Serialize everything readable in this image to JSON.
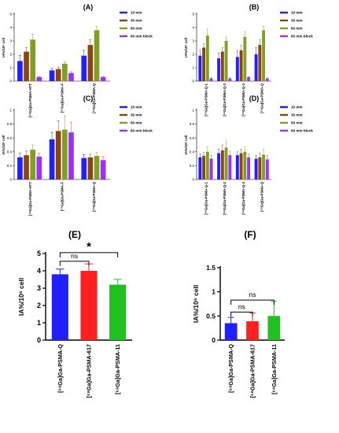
{
  "chart_data": [
    {
      "panel": "(A)",
      "type": "bar",
      "ylabel": "IA%/10⁶ cell",
      "ylim": [
        0,
        5
      ],
      "yticks": [
        0,
        1,
        2,
        3,
        4,
        5
      ],
      "categories": [
        "[⁶⁸Ga]Ga-PSMA-HTT",
        "[⁶⁸Ga]Ga-PSMA-F",
        "[⁶⁸Ga]Ga-PSMA-Q"
      ],
      "legend_position": "right",
      "series": [
        {
          "name": "10 min",
          "color": "#2020ff",
          "values": [
            1.5,
            0.8,
            1.9
          ],
          "errors": [
            0.4,
            0.15,
            0.4
          ]
        },
        {
          "name": "30 min",
          "color": "#8b4513",
          "values": [
            2.2,
            0.9,
            2.7
          ],
          "errors": [
            0.3,
            0.15,
            0.4
          ]
        },
        {
          "name": "60 min",
          "color": "#7fa020",
          "values": [
            3.1,
            1.3,
            3.8
          ],
          "errors": [
            0.4,
            0.15,
            0.3
          ]
        },
        {
          "name": "60 min block",
          "color": "#9b30ff",
          "values": [
            0.3,
            0.6,
            0.3
          ],
          "errors": [
            0.05,
            0.1,
            0.05
          ]
        }
      ]
    },
    {
      "panel": "(B)",
      "type": "bar",
      "ylabel": "IA%/10⁶ cell",
      "ylim": [
        0,
        5
      ],
      "yticks": [
        0,
        1,
        2,
        3,
        4,
        5
      ],
      "categories": [
        "[⁶⁸Ga]Ga-PSMA-Q-1",
        "[⁶⁸Ga]Ga-PSMA-Q-2",
        "[⁶⁸Ga]Ga-PSMA-Q-3",
        "[⁶⁸Ga]Ga-PSMA-Q"
      ],
      "legend_position": "right",
      "series": [
        {
          "name": "10 min",
          "color": "#2020ff",
          "values": [
            1.9,
            1.7,
            1.8,
            2.0
          ],
          "errors": [
            0.4,
            0.4,
            0.5,
            0.5
          ]
        },
        {
          "name": "30 min",
          "color": "#8b4513",
          "values": [
            2.5,
            2.2,
            2.3,
            2.7
          ],
          "errors": [
            0.3,
            0.3,
            0.4,
            0.4
          ]
        },
        {
          "name": "60 min",
          "color": "#7fa020",
          "values": [
            3.4,
            3.0,
            3.3,
            3.8
          ],
          "errors": [
            0.5,
            0.3,
            0.4,
            0.3
          ]
        },
        {
          "name": "60 min block",
          "color": "#9b30ff",
          "values": [
            0.2,
            0.2,
            0.3,
            0.2
          ],
          "errors": [
            0.05,
            0.05,
            0.05,
            0.05
          ]
        }
      ]
    },
    {
      "panel": "(C)",
      "type": "bar",
      "ylabel": "IA%/10⁶ cell",
      "ylim": [
        0,
        1.0
      ],
      "yticks": [
        0,
        0.2,
        0.4,
        0.6,
        0.8,
        1.0
      ],
      "categories": [
        "[⁶⁸Ga]Ga-PSMA-HTT",
        "[⁶⁸Ga]Ga-PSMA-F",
        "[⁶⁸Ga]Ga-PSMA-Q"
      ],
      "legend_position": "right",
      "series": [
        {
          "name": "10 min",
          "color": "#2020ff",
          "values": [
            0.32,
            0.58,
            0.31
          ],
          "errors": [
            0.06,
            0.1,
            0.05
          ]
        },
        {
          "name": "30 min",
          "color": "#8b4513",
          "values": [
            0.35,
            0.7,
            0.32
          ],
          "errors": [
            0.06,
            0.15,
            0.05
          ]
        },
        {
          "name": "60 min",
          "color": "#7fa020",
          "values": [
            0.43,
            0.72,
            0.34
          ],
          "errors": [
            0.07,
            0.2,
            0.05
          ]
        },
        {
          "name": "60 min block",
          "color": "#9b30ff",
          "values": [
            0.33,
            0.68,
            0.28
          ],
          "errors": [
            0.05,
            0.15,
            0.05
          ]
        }
      ]
    },
    {
      "panel": "(D)",
      "type": "bar",
      "ylabel": "IA%/10⁶ cell",
      "ylim": [
        0,
        1.0
      ],
      "yticks": [
        0,
        0.2,
        0.4,
        0.6,
        0.8,
        1.0
      ],
      "categories": [
        "[⁶⁸Ga]Ga-PSMA-Q-1",
        "[⁶⁸Ga]Ga-PSMA-Q-2",
        "[⁶⁸Ga]Ga-PSMA-Q-3",
        "[⁶⁸Ga]Ga-PSMA-Q"
      ],
      "legend_position": "right",
      "series": [
        {
          "name": "10 min",
          "color": "#2020ff",
          "values": [
            0.32,
            0.38,
            0.35,
            0.3
          ],
          "errors": [
            0.05,
            0.06,
            0.05,
            0.05
          ]
        },
        {
          "name": "30 min",
          "color": "#8b4513",
          "values": [
            0.34,
            0.42,
            0.38,
            0.32
          ],
          "errors": [
            0.05,
            0.08,
            0.06,
            0.06
          ]
        },
        {
          "name": "60 min",
          "color": "#7fa020",
          "values": [
            0.4,
            0.46,
            0.4,
            0.36
          ],
          "errors": [
            0.07,
            0.1,
            0.07,
            0.08
          ]
        },
        {
          "name": "60 min block",
          "color": "#9b30ff",
          "values": [
            0.3,
            0.35,
            0.32,
            0.29
          ],
          "errors": [
            0.05,
            0.06,
            0.05,
            0.06
          ]
        }
      ]
    },
    {
      "panel": "(E)",
      "type": "bar",
      "ylabel": "IA%/10⁶ cell",
      "ylim": [
        0,
        5
      ],
      "yticks": [
        0,
        1,
        2,
        3,
        4,
        5
      ],
      "categories": [
        "[⁶⁸Ga]Ga-PSMA-Q",
        "[⁶⁸Ga]Ga-PSMA-617",
        "[⁶⁸Ga]Ga-PSMA-11"
      ],
      "series": [
        {
          "color": "#2020ff",
          "values": [
            3.8,
            4.0,
            3.2
          ],
          "errors": [
            0.3,
            0.4,
            0.3
          ],
          "colors": [
            "#2020ff",
            "#ff2020",
            "#20c020"
          ]
        }
      ],
      "annotations": [
        {
          "text": "ns",
          "between": [
            0,
            1
          ],
          "level": 4.55
        },
        {
          "text": "*",
          "between": [
            0,
            2
          ],
          "level": 5.05
        }
      ]
    },
    {
      "panel": "(F)",
      "type": "bar",
      "ylabel": "IA%/10⁶ cell",
      "ylim": [
        0,
        1.5
      ],
      "yticks": [
        0,
        0.5,
        1.0,
        1.5
      ],
      "categories": [
        "[⁶⁸Ga]Ga-PSMA-Q",
        "[⁶⁸Ga]Ga-PSMA-617",
        "[⁶⁸Ga]Ga-PSMA-11"
      ],
      "series": [
        {
          "color": "#2020ff",
          "values": [
            0.35,
            0.39,
            0.5
          ],
          "errors": [
            0.12,
            0.17,
            0.3
          ],
          "colors": [
            "#2020ff",
            "#ff2020",
            "#20c020"
          ]
        }
      ],
      "annotations": [
        {
          "text": "ns",
          "between": [
            0,
            1
          ],
          "level": 0.58
        },
        {
          "text": "ns",
          "between": [
            0,
            2
          ],
          "level": 0.83
        }
      ]
    }
  ]
}
